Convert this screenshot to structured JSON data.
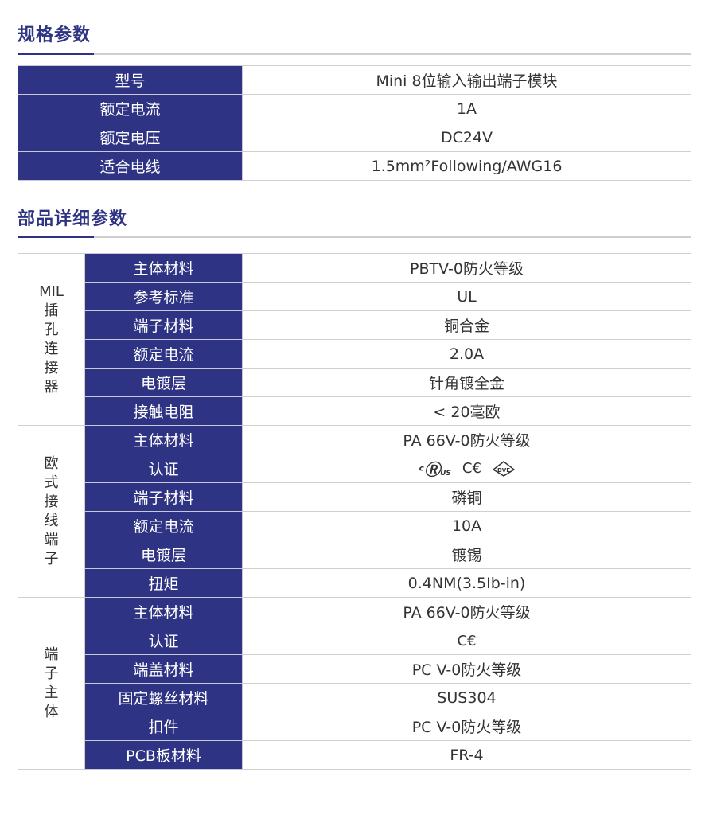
{
  "spec": {
    "title": "规格参数",
    "rows": [
      {
        "k": "型号",
        "v": "Mini 8位输入输出端子模块"
      },
      {
        "k": "额定电流",
        "v": "1A"
      },
      {
        "k": "额定电压",
        "v": "DC24V"
      },
      {
        "k": "适合电线",
        "v": "1.5mm²Following/AWG16"
      }
    ]
  },
  "parts": {
    "title": "部品详细参数",
    "groups": [
      {
        "name": "MIL\n插\n孔\n连\n接\n器",
        "rows": [
          {
            "k": "主体材料",
            "v": "PBTV-0防火等级"
          },
          {
            "k": "参考标准",
            "v": "UL"
          },
          {
            "k": "端子材料",
            "v": "铜合金"
          },
          {
            "k": "额定电流",
            "v": "2.0A"
          },
          {
            "k": "电镀层",
            "v": "针角镀全金"
          },
          {
            "k": "接触电阻",
            "v": "< 20毫欧"
          }
        ]
      },
      {
        "name": "欧\n式\n接\n线\n端\n子",
        "rows": [
          {
            "k": "主体材料",
            "v": "PA 66V-0防火等级"
          },
          {
            "k": "认证",
            "icons": [
              "ul-recognized-icon",
              "ce-mark-icon",
              "vde-mark-icon"
            ]
          },
          {
            "k": "端子材料",
            "v": "磷铜"
          },
          {
            "k": "额定电流",
            "v": "10A"
          },
          {
            "k": "电镀层",
            "v": "镀锡"
          },
          {
            "k": "扭矩",
            "v": "0.4NM(3.5Ib-in)"
          }
        ]
      },
      {
        "name": "端\n子\n主\n体",
        "rows": [
          {
            "k": "主体材料",
            "v": "PA 66V-0防火等级"
          },
          {
            "k": "认证",
            "icons": [
              "ce-mark-icon"
            ]
          },
          {
            "k": "端盖材料",
            "v": "PC V-0防火等级"
          },
          {
            "k": "固定螺丝材料",
            "v": "SUS304"
          },
          {
            "k": "扣件",
            "v": "PC V-0防火等级"
          },
          {
            "k": "PCB板材料",
            "v": "FR-4"
          }
        ]
      }
    ]
  },
  "colors": {
    "accent": "#2e3383"
  }
}
